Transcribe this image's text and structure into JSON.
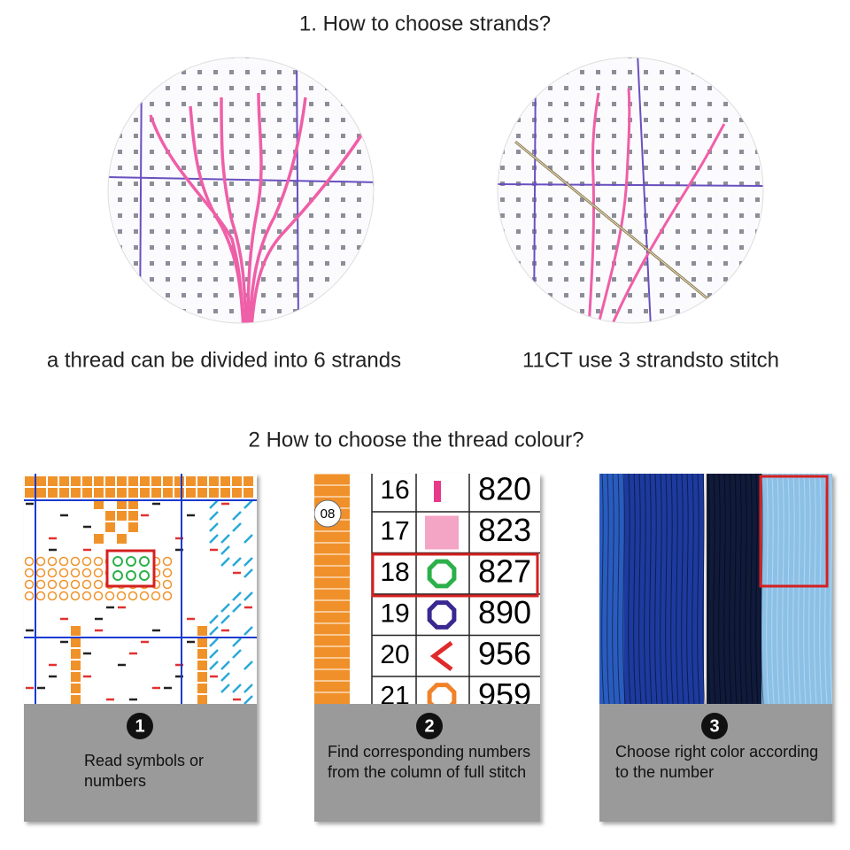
{
  "section1": {
    "title": "1. How to choose strands?",
    "captions": [
      "a thread can be divided into 6 strands",
      "11CT use 3 strandsto stitch"
    ]
  },
  "section2": {
    "title": "2 How to choose the thread colour?",
    "steps": [
      {
        "number": "1",
        "text": "Read symbols or numbers"
      },
      {
        "number": "2",
        "text": "Find corresponding numbers from the column of full stitch"
      },
      {
        "number": "3",
        "text": "Choose right color according to the number"
      }
    ],
    "chart_page": "08",
    "table": {
      "rows": [
        [
          "16",
          "820"
        ],
        [
          "17",
          "823"
        ],
        [
          "18",
          "827"
        ],
        [
          "19",
          "890"
        ],
        [
          "20",
          "956"
        ],
        [
          "21",
          "959"
        ]
      ]
    }
  }
}
